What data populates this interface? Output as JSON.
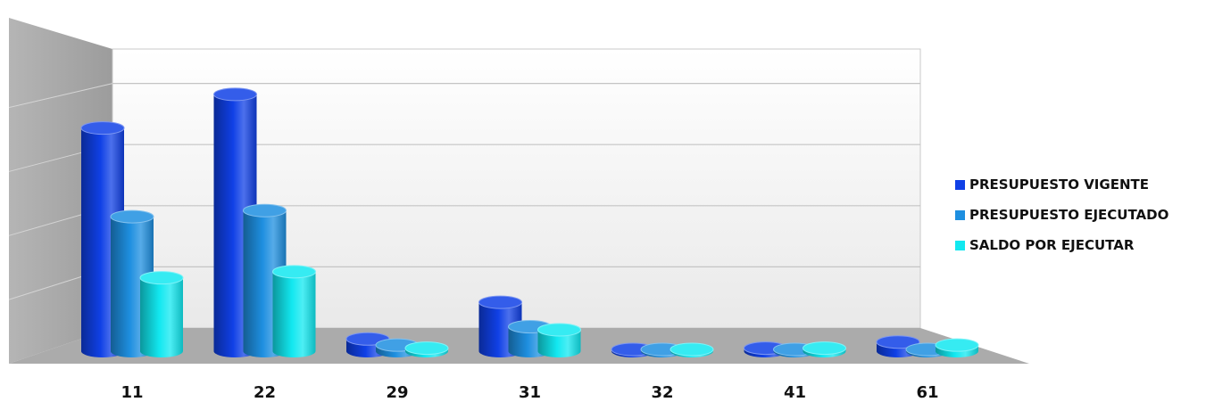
{
  "chart_data": {
    "type": "bar",
    "style": "3d-cylinder",
    "categories": [
      "11",
      "22",
      "29",
      "31",
      "32",
      "41",
      "61"
    ],
    "series": [
      {
        "name": "PRESUPUESTO VIGENTE",
        "color": "#1040e6",
        "values": [
          7.3,
          8.4,
          0.4,
          1.6,
          0.05,
          0.1,
          0.3
        ]
      },
      {
        "name": "PRESUPUESTO EJECUTADO",
        "color": "#1e8fe0",
        "values": [
          4.4,
          4.6,
          0.2,
          0.8,
          0.03,
          0.05,
          0.05
        ]
      },
      {
        "name": "SALDO POR EJECUTAR",
        "color": "#12e8f0",
        "values": [
          2.4,
          2.6,
          0.1,
          0.7,
          0.02,
          0.1,
          0.2
        ]
      }
    ],
    "ylim": [
      0,
      9
    ],
    "grid": true,
    "legend_position": "right"
  }
}
